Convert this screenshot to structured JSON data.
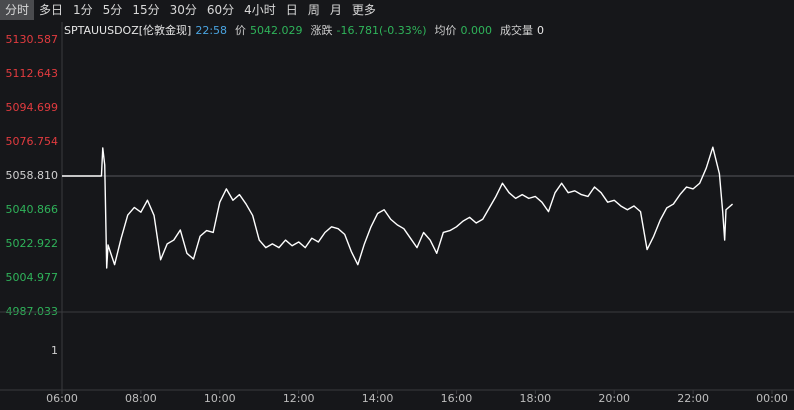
{
  "toolbar": {
    "tabs": [
      "分时",
      "多日",
      "1分",
      "5分",
      "15分",
      "30分",
      "60分",
      "4小时",
      "日",
      "周",
      "月",
      "更多"
    ],
    "active": 0
  },
  "chart_data": {
    "type": "line",
    "symbol": "SPTAUUSDOZ[伦敦金现]",
    "time": "22:58",
    "info": [
      {
        "label": "价",
        "value": "5042.029"
      },
      {
        "label": "涨跌",
        "value": "-16.781(-0.33%)"
      },
      {
        "label": "均价",
        "value": "0.000"
      },
      {
        "label": "成交量",
        "value": "0"
      }
    ],
    "reference_line": 5058.81,
    "up_color": "#e23b3f",
    "down_color": "#2fb35a",
    "flat_color": "#d0d0d0",
    "ylim": [
      4987.033,
      5130.587
    ],
    "yticks": [
      5130.587,
      5112.643,
      5094.699,
      5076.754,
      {
        "value": 5058.81,
        "label": "5058.810"
      },
      5040.866,
      5022.922,
      5004.977,
      4987.033
    ],
    "volume_ylabel": "1",
    "xlim": [
      "06:00",
      "00:00"
    ],
    "xticks": [
      "06:00",
      "08:00",
      "10:00",
      "12:00",
      "14:00",
      "16:00",
      "18:00",
      "20:00",
      "22:00",
      "00:00"
    ],
    "x": [
      "06:00",
      "07:00",
      "07:02",
      "07:05",
      "07:08",
      "07:10",
      "07:20",
      "07:30",
      "07:40",
      "07:50",
      "08:00",
      "08:10",
      "08:20",
      "08:30",
      "08:40",
      "08:50",
      "09:00",
      "09:10",
      "09:20",
      "09:30",
      "09:40",
      "09:50",
      "10:00",
      "10:10",
      "10:20",
      "10:30",
      "10:40",
      "10:50",
      "11:00",
      "11:10",
      "11:20",
      "11:30",
      "11:40",
      "11:50",
      "12:00",
      "12:10",
      "12:20",
      "12:30",
      "12:40",
      "12:50",
      "13:00",
      "13:10",
      "13:20",
      "13:30",
      "13:40",
      "13:50",
      "14:00",
      "14:10",
      "14:20",
      "14:30",
      "14:40",
      "14:50",
      "15:00",
      "15:10",
      "15:20",
      "15:30",
      "15:40",
      "15:50",
      "16:00",
      "16:10",
      "16:20",
      "16:30",
      "16:40",
      "16:50",
      "17:00",
      "17:10",
      "17:20",
      "17:30",
      "17:40",
      "17:50",
      "18:00",
      "18:10",
      "18:20",
      "18:30",
      "18:40",
      "18:50",
      "19:00",
      "19:10",
      "19:20",
      "19:30",
      "19:40",
      "19:50",
      "20:00",
      "20:10",
      "20:20",
      "20:30",
      "20:40",
      "20:50",
      "21:00",
      "21:10",
      "21:20",
      "21:30",
      "21:40",
      "21:50",
      "22:00",
      "22:10",
      "22:20",
      "22:30",
      "22:40",
      "22:45",
      "22:48",
      "22:50",
      "23:00"
    ],
    "series": [
      {
        "color": "#ffffff",
        "values": [
          5058.81,
          5058.81,
          5073.59,
          5064.6,
          5010.26,
          5022.4,
          5012.0,
          5026.0,
          5038.2,
          5042.2,
          5039.7,
          5046.0,
          5038.0,
          5014.6,
          5023.0,
          5025.0,
          5030.3,
          5018.0,
          5015.0,
          5027.0,
          5030.0,
          5029.0,
          5045.0,
          5052.0,
          5046.0,
          5049.0,
          5044.0,
          5038.0,
          5025.0,
          5021.0,
          5023.0,
          5021.0,
          5025.0,
          5022.0,
          5024.0,
          5021.0,
          5026.0,
          5024.0,
          5029.0,
          5032.0,
          5031.0,
          5028.0,
          5019.0,
          5012.0,
          5023.0,
          5032.0,
          5039.0,
          5041.0,
          5036.0,
          5033.0,
          5031.0,
          5026.0,
          5021.0,
          5029.0,
          5025.0,
          5018.0,
          5029.0,
          5030.0,
          5032.0,
          5035.0,
          5037.0,
          5034.0,
          5036.0,
          5042.0,
          5048.0,
          5055.0,
          5050.0,
          5047.0,
          5049.0,
          5047.0,
          5048.0,
          5045.0,
          5040.0,
          5050.0,
          5055.0,
          5050.0,
          5051.0,
          5049.0,
          5048.0,
          5053.0,
          5050.0,
          5045.0,
          5046.0,
          5043.0,
          5041.0,
          5043.0,
          5040.0,
          5020.0,
          5027.0,
          5035.6,
          5042.0,
          5044.0,
          5049.0,
          5053.0,
          5052.0,
          5055.0,
          5063.0,
          5074.0,
          5060.0,
          5040.0,
          5025.0,
          5041.0,
          5044.0
        ]
      }
    ]
  }
}
